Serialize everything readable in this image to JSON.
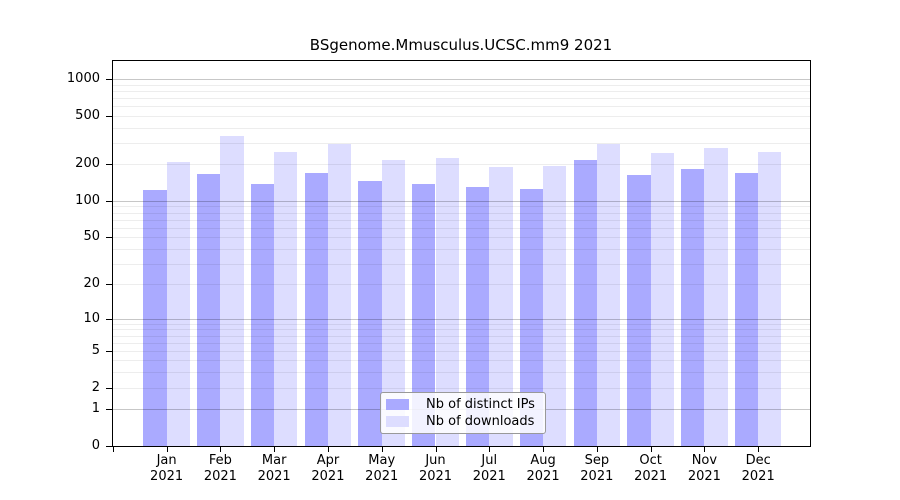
{
  "chart_data": {
    "type": "bar",
    "title": "BSgenome.Mmusculus.UCSC.mm9 2021",
    "categories": [
      "Jan",
      "Feb",
      "Mar",
      "Apr",
      "May",
      "Jun",
      "Jul",
      "Aug",
      "Sep",
      "Oct",
      "Nov",
      "Dec"
    ],
    "category_year": "2021",
    "series": [
      {
        "name": "Nb of distinct IPs",
        "color": "#aaaaff",
        "values": [
          122,
          167,
          138,
          170,
          146,
          137,
          131,
          126,
          215,
          162,
          182,
          170
        ]
      },
      {
        "name": "Nb of downloads",
        "color": "#ddddff",
        "values": [
          210,
          340,
          253,
          292,
          216,
          224,
          189,
          193,
          292,
          246,
          270,
          250
        ]
      }
    ],
    "y_ticks": [
      0,
      1,
      2,
      5,
      10,
      20,
      50,
      100,
      200,
      500,
      1000
    ],
    "y_scale": "log10(value+1)",
    "ylim": [
      0,
      1000
    ],
    "grid": "horizontal, minor lines at 2-9 of each decade",
    "legend_position": "bottom-center"
  },
  "colors": {
    "axis": "#000000",
    "gridline_major": "rgba(0,0,0,0.22)",
    "gridline_minor": "rgba(0,0,0,0.07)",
    "legend_border": "#999999",
    "legend_background": "rgba(255,255,255,0.85)"
  }
}
